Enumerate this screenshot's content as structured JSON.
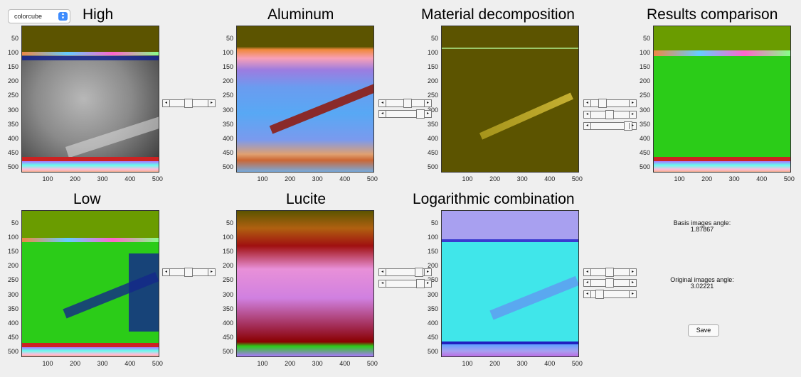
{
  "colormap_select": {
    "value": "colorcube",
    "arrow_icon": "updown-chevron-icon"
  },
  "titles": {
    "high": "High",
    "aluminum": "Aluminum",
    "material": "Material decomposition",
    "results": "Results comparison",
    "low": "Low",
    "lucite": "Lucite",
    "logcomb": "Logarithmic combination"
  },
  "axes": {
    "yticks": [
      "50",
      "100",
      "150",
      "200",
      "250",
      "300",
      "350",
      "400",
      "450",
      "500"
    ],
    "xticks": [
      "100",
      "200",
      "300",
      "400",
      "500"
    ]
  },
  "slider_arrows": {
    "left": "◂",
    "right": "▸"
  },
  "info": {
    "basis_label": "Basis images angle:",
    "basis_value": "1.87867",
    "original_label": "Original images angle:",
    "original_value": "3.02221"
  },
  "save_label": "Save",
  "colors": {
    "background": "#efefef",
    "olive": "#5c5400",
    "green": "#2bcc18",
    "cyan": "#40e6ea",
    "lavender": "#a8a0f0",
    "accent_blue": "#3d8bfd"
  }
}
